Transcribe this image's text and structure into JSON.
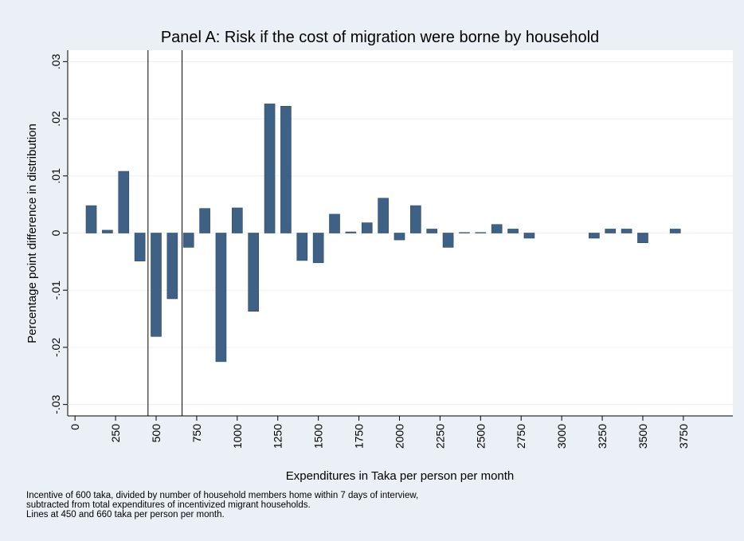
{
  "chart_data": {
    "type": "bar",
    "title": "Panel A: Risk if the cost of migration were borne by household",
    "x_label": "Expenditures in Taka per person per month",
    "y_label": "Percentage point difference in distribution",
    "note": [
      "Incentive of 600 taka, divided by number of household members home within 7 days of interview,",
      "subtracted from total expenditures of incentivized migrant households.",
      "Lines at 450 and 660 taka per person per month."
    ],
    "x": [
      100,
      200,
      300,
      400,
      500,
      600,
      700,
      800,
      900,
      1000,
      1100,
      1200,
      1300,
      1400,
      1500,
      1600,
      1700,
      1800,
      1900,
      2000,
      2100,
      2200,
      2300,
      2400,
      2500,
      2600,
      2700,
      2800,
      3200,
      3300,
      3400,
      3500,
      3700
    ],
    "values": [
      0.0048,
      0.0005,
      0.0108,
      -0.0049,
      -0.0181,
      -0.0115,
      -0.0025,
      0.0043,
      -0.0225,
      0.0044,
      -0.0137,
      0.0226,
      0.0222,
      -0.0048,
      -0.0052,
      0.0033,
      0.0002,
      0.0018,
      0.0061,
      -0.0012,
      0.0048,
      0.0007,
      -0.0025,
      0.0001,
      0.0001,
      0.0015,
      0.0007,
      -0.0009,
      -0.0009,
      0.0007,
      0.0007,
      -0.0017,
      0.0007
    ],
    "color": "#3e6185",
    "vlines": [
      450,
      660
    ],
    "xlim": [
      -45,
      4055
    ],
    "ylim": [
      -0.032,
      0.032
    ],
    "xticks": [
      0,
      250,
      500,
      750,
      1000,
      1250,
      1500,
      1750,
      2000,
      2250,
      2500,
      2750,
      3000,
      3250,
      3500,
      3750
    ],
    "yticks": [
      {
        "value": -0.03,
        "label": "-.03"
      },
      {
        "value": -0.02,
        "label": "-.02"
      },
      {
        "value": -0.01,
        "label": "-.01"
      },
      0,
      {
        "value": 0.01,
        "label": ".01"
      },
      {
        "value": 0.02,
        "label": ".02"
      },
      {
        "value": 0.03,
        "label": ".03"
      }
    ],
    "grid": true
  }
}
